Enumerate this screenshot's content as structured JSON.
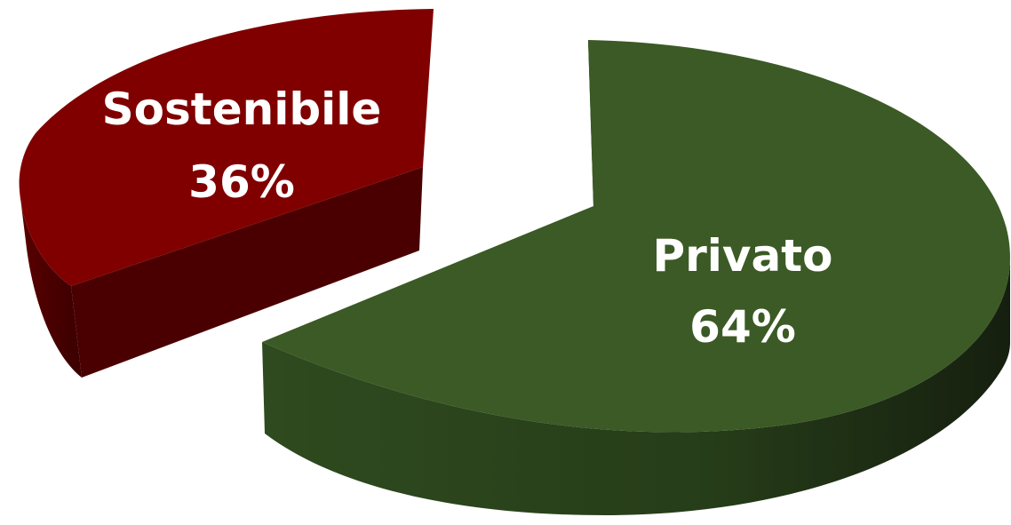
{
  "chart_data": {
    "type": "pie",
    "style": "3d-exploded",
    "slices": [
      {
        "label": "Sostenibile",
        "value": 36,
        "value_label": "36%",
        "color": "#800000",
        "side_color": "#4a0000"
      },
      {
        "label": "Privato",
        "value": 64,
        "value_label": "64%",
        "color": "#3b5a25",
        "side_color": "#24391a"
      }
    ],
    "legend": "none"
  }
}
